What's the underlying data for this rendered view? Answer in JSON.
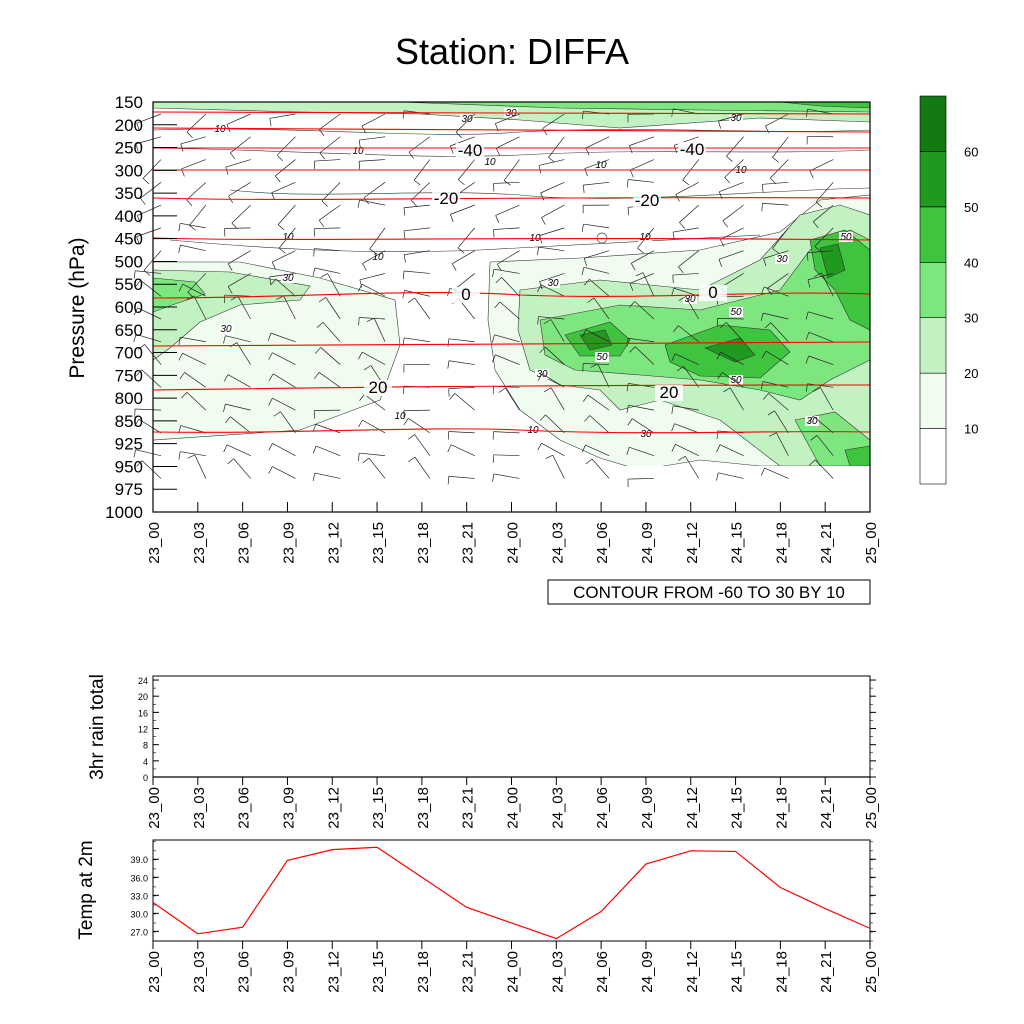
{
  "title": "Station: DIFFA",
  "chart_data": [
    {
      "type": "heatmap",
      "title": "Station: DIFFA",
      "ylabel": "Pressure (hPa)",
      "pressure_levels": [
        150,
        200,
        250,
        300,
        350,
        400,
        450,
        500,
        550,
        600,
        650,
        700,
        750,
        800,
        850,
        925,
        950,
        975,
        1000
      ],
      "categories": [
        "23_00",
        "23_03",
        "23_06",
        "23_09",
        "23_12",
        "23_15",
        "23_18",
        "23_21",
        "24_00",
        "24_03",
        "24_06",
        "24_09",
        "24_12",
        "24_15",
        "24_18",
        "24_21",
        "25_00"
      ],
      "shading_variable": "relative humidity",
      "colorbar": {
        "labels": [
          10,
          20,
          30,
          40,
          50,
          60
        ],
        "colors": [
          "#ffffff",
          "#f0fcf0",
          "#c2f2c2",
          "#7ee67e",
          "#3ec43e",
          "#1f9a1f",
          "#137a13"
        ]
      },
      "temperature_contours": {
        "labels": [
          -40,
          -40,
          -20,
          -20,
          0,
          0,
          20,
          20
        ],
        "color": "#ff0000"
      },
      "humidity_contour_labels": [
        "10",
        "30",
        "50"
      ],
      "info_box": "CONTOUR FROM -60 TO 30 BY 10"
    },
    {
      "type": "line",
      "ylabel": "3hr rain total",
      "categories": [
        "23_00",
        "23_03",
        "23_06",
        "23_09",
        "23_12",
        "23_15",
        "23_18",
        "23_21",
        "24_00",
        "24_03",
        "24_06",
        "24_09",
        "24_12",
        "24_15",
        "24_18",
        "24_21",
        "25_00"
      ],
      "yticks": [
        0,
        4,
        8,
        12,
        16,
        20,
        24
      ],
      "ylim": [
        0,
        25
      ],
      "values": [
        0,
        0,
        0,
        0,
        0,
        0,
        0,
        0,
        0,
        0,
        0,
        0,
        0,
        0,
        0,
        0,
        0
      ]
    },
    {
      "type": "line",
      "ylabel": "Temp at 2m",
      "categories": [
        "23_00",
        "23_03",
        "23_06",
        "23_09",
        "23_12",
        "23_15",
        "23_18",
        "23_21",
        "24_00",
        "24_03",
        "24_06",
        "24_09",
        "24_12",
        "24_15",
        "24_18",
        "24_21",
        "25_00"
      ],
      "yticks": [
        "27.0",
        "30.0",
        "33.0",
        "36.0",
        "39.0"
      ],
      "ylim": [
        25.4,
        42.2
      ],
      "values": [
        31.8,
        26.6,
        27.7,
        38.8,
        40.6,
        41.0,
        36.0,
        31.0,
        28.4,
        25.8,
        30.3,
        38.2,
        40.4,
        40.3,
        34.3,
        30.8,
        27.5
      ],
      "color": "#ff0000"
    }
  ]
}
